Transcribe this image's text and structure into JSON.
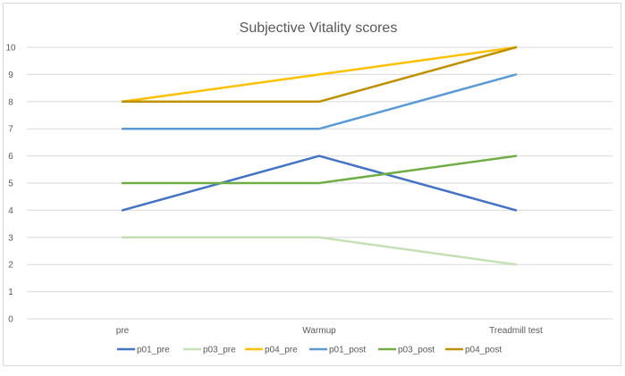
{
  "chart_data": {
    "type": "line",
    "title": "Subjective Vitality scores",
    "xlabel": "",
    "ylabel": "",
    "categories": [
      "pre",
      "Warmup",
      "Treadmill test"
    ],
    "ylim": [
      0,
      10
    ],
    "yticks": [
      0,
      1,
      2,
      3,
      4,
      5,
      6,
      7,
      8,
      9,
      10
    ],
    "grid": "horizontal",
    "legend_position": "bottom",
    "series": [
      {
        "name": "p01_pre",
        "color": "#4472c4",
        "values": [
          4,
          6,
          4
        ]
      },
      {
        "name": "p03_pre",
        "color": "#c5e0b4",
        "values": [
          3,
          3,
          2
        ]
      },
      {
        "name": "p04_pre",
        "color": "#ffc000",
        "values": [
          8,
          9,
          10
        ]
      },
      {
        "name": "p01_post",
        "color": "#5b9bd5",
        "values": [
          7,
          7,
          9
        ]
      },
      {
        "name": "p03_post",
        "color": "#70ad47",
        "values": [
          5,
          5,
          6
        ]
      },
      {
        "name": "p04_post",
        "color": "#bf9000",
        "values": [
          8,
          8,
          10
        ]
      }
    ]
  }
}
